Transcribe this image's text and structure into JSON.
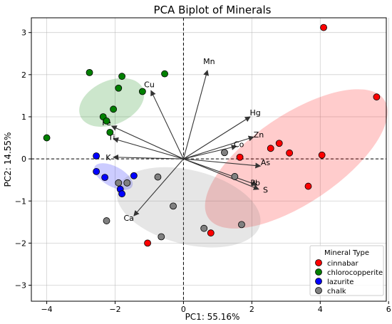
{
  "chart_data": {
    "type": "scatter",
    "title": "PCA Biplot of Minerals",
    "xlabel": "PC1: 55.16%",
    "ylabel": "PC2: 14.55%",
    "xlim": [
      -4.45,
      6.1
    ],
    "ylim": [
      -3.38,
      3.35
    ],
    "xticks": [
      -4,
      -2,
      0,
      2,
      4,
      6
    ],
    "yticks": [
      -3,
      -2,
      -1,
      0,
      1,
      2,
      3
    ],
    "xtick_labels": [
      "−4",
      "−2",
      "0",
      "2",
      "4",
      "6"
    ],
    "ytick_labels": [
      "−3",
      "−2",
      "−1",
      "0",
      "1",
      "2",
      "3"
    ],
    "grid": true,
    "legend": {
      "title": "Mineral Type",
      "placement": "lower-right"
    },
    "series": [
      {
        "name": "cinnabar",
        "color": "#ff0000",
        "points": [
          [
            4.1,
            3.12
          ],
          [
            5.65,
            1.47
          ],
          [
            2.55,
            0.25
          ],
          [
            2.8,
            0.37
          ],
          [
            3.1,
            0.14
          ],
          [
            4.05,
            0.09
          ],
          [
            1.65,
            0.04
          ],
          [
            3.65,
            -0.65
          ],
          [
            0.8,
            -1.76
          ],
          [
            -1.05,
            -2.0
          ]
        ]
      },
      {
        "name": "chlorocopperite",
        "color": "#008000",
        "points": [
          [
            -2.75,
            2.05
          ],
          [
            -1.8,
            1.96
          ],
          [
            -0.55,
            2.02
          ],
          [
            -1.9,
            1.68
          ],
          [
            -1.2,
            1.6
          ],
          [
            -2.05,
            1.18
          ],
          [
            -2.35,
            1.0
          ],
          [
            -2.25,
            0.9
          ],
          [
            -2.15,
            0.63
          ],
          [
            -4.0,
            0.5
          ]
        ]
      },
      {
        "name": "lazurite",
        "color": "#0000ff",
        "points": [
          [
            -2.55,
            0.07
          ],
          [
            -2.55,
            -0.3
          ],
          [
            -2.3,
            -0.44
          ],
          [
            -1.45,
            -0.4
          ],
          [
            -1.85,
            -0.72
          ],
          [
            -1.8,
            -0.83
          ]
        ]
      },
      {
        "name": "chalk",
        "color": "#808080",
        "points": [
          [
            1.2,
            0.15
          ],
          [
            -0.75,
            -0.43
          ],
          [
            1.5,
            -0.42
          ],
          [
            -1.9,
            -0.57
          ],
          [
            -1.65,
            -0.57
          ],
          [
            -0.3,
            -1.12
          ],
          [
            -2.25,
            -1.47
          ],
          [
            1.7,
            -1.56
          ],
          [
            0.6,
            -1.65
          ],
          [
            -0.65,
            -1.85
          ]
        ]
      }
    ],
    "ellipses": [
      {
        "series": "cinnabar",
        "color": "#ff0000",
        "center": [
          3.3,
          0.0
        ],
        "rx": 3.1,
        "ry": 1.05,
        "angle_deg": 34
      },
      {
        "series": "chlorocopperite",
        "color": "#008000",
        "center": [
          -2.1,
          1.34
        ],
        "rx": 1.0,
        "ry": 0.52,
        "angle_deg": 24
      },
      {
        "series": "lazurite",
        "color": "#0000ff",
        "center": [
          -2.05,
          -0.42
        ],
        "rx": 0.62,
        "ry": 0.24,
        "angle_deg": -28
      },
      {
        "series": "chalk",
        "color": "#808080",
        "center": [
          0.15,
          -1.15
        ],
        "rx": 2.15,
        "ry": 0.88,
        "angle_deg": -14
      }
    ],
    "loadings": [
      {
        "label": "Mn",
        "x": 0.7,
        "y": 2.1,
        "lx": 0.75,
        "ly": 2.3
      },
      {
        "label": "Cu",
        "x": -0.95,
        "y": 1.62,
        "lx": -1.0,
        "ly": 1.75
      },
      {
        "label": "Hg",
        "x": 1.95,
        "y": 1.0,
        "lx": 2.1,
        "ly": 1.08
      },
      {
        "label": "Fe",
        "x": -2.1,
        "y": 0.78,
        "lx": -2.25,
        "ly": 0.85
      },
      {
        "label": "Ti",
        "x": -2.05,
        "y": 0.48,
        "lx": -2.1,
        "ly": 0.5
      },
      {
        "label": "Zn",
        "x": 2.05,
        "y": 0.52,
        "lx": 2.2,
        "ly": 0.56
      },
      {
        "label": "Co",
        "x": 1.55,
        "y": 0.3,
        "lx": 1.62,
        "ly": 0.33
      },
      {
        "label": "K",
        "x": -2.05,
        "y": 0.04,
        "lx": -2.2,
        "ly": 0.02
      },
      {
        "label": "As",
        "x": 2.25,
        "y": -0.17,
        "lx": 2.4,
        "ly": -0.1
      },
      {
        "label": "Pb",
        "x": 2.15,
        "y": -0.62,
        "lx": 2.1,
        "ly": -0.58
      },
      {
        "label": "S",
        "x": 2.2,
        "y": -0.72,
        "lx": 2.4,
        "ly": -0.75
      },
      {
        "label": "Ca",
        "x": -1.45,
        "y": -1.35,
        "lx": -1.6,
        "ly": -1.42
      }
    ]
  }
}
